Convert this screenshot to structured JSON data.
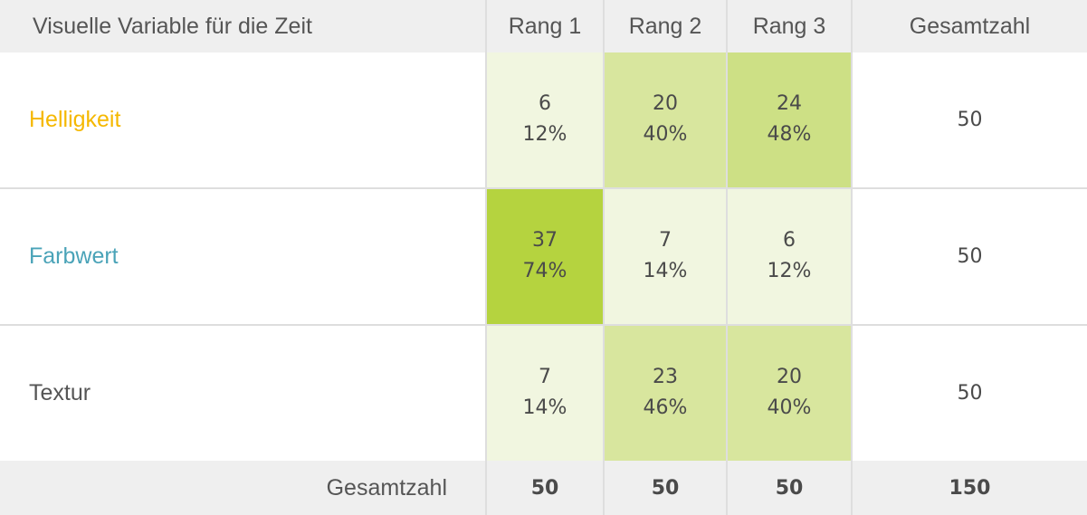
{
  "chart_data": {
    "type": "table",
    "header": {
      "variable": "Visuelle Variable für die Zeit",
      "ranks": [
        "Rang 1",
        "Rang 2",
        "Rang 3"
      ],
      "total": "Gesamtzahl"
    },
    "rows": [
      {
        "label": "Helligkeit",
        "label_color": "#f5b800",
        "cells": [
          {
            "count": "6",
            "percent": "12%",
            "share": 0.12
          },
          {
            "count": "20",
            "percent": "40%",
            "share": 0.4
          },
          {
            "count": "24",
            "percent": "48%",
            "share": 0.48
          }
        ],
        "total": "50"
      },
      {
        "label": "Farbwert",
        "label_color": "#4aa3b8",
        "cells": [
          {
            "count": "37",
            "percent": "74%",
            "share": 0.74
          },
          {
            "count": "7",
            "percent": "14%",
            "share": 0.14
          },
          {
            "count": "6",
            "percent": "12%",
            "share": 0.12
          }
        ],
        "total": "50"
      },
      {
        "label": "Textur",
        "label_color": "#555555",
        "cells": [
          {
            "count": "7",
            "percent": "14%",
            "share": 0.14
          },
          {
            "count": "23",
            "percent": "46%",
            "share": 0.46
          },
          {
            "count": "20",
            "percent": "40%",
            "share": 0.4
          }
        ],
        "total": "50"
      }
    ],
    "footer": {
      "label": "Gesamtzahl",
      "values": [
        "50",
        "50",
        "50"
      ],
      "grand_total": "150"
    },
    "heat_colors": {
      "low": "#f1f6e0",
      "mid": "#d8e69e",
      "high": "#cde085",
      "max": "#b5d33f"
    }
  }
}
